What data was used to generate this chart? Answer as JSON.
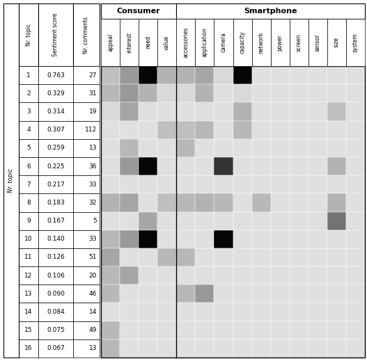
{
  "topics": [
    1,
    2,
    3,
    4,
    5,
    6,
    7,
    8,
    9,
    10,
    11,
    12,
    13,
    14,
    15,
    16
  ],
  "sentiment_scores": [
    0.763,
    0.329,
    0.314,
    0.307,
    0.259,
    0.225,
    0.217,
    0.183,
    0.167,
    0.14,
    0.126,
    0.106,
    0.09,
    0.084,
    0.075,
    0.067
  ],
  "nr_comments": [
    27,
    31,
    19,
    112,
    13,
    36,
    33,
    32,
    5,
    33,
    51,
    20,
    46,
    14,
    49,
    13
  ],
  "consumer_cols": [
    "appeal",
    "interest",
    "need",
    "value"
  ],
  "smartphone_cols": [
    "accessories",
    "application",
    "camera",
    "capacity",
    "network",
    "power",
    "screen",
    "sensor",
    "size",
    "system"
  ],
  "heatmap_data": [
    [
      0.75,
      0.6,
      0.02,
      0.7,
      0.7,
      0.65,
      0.85,
      0.02,
      0.88,
      0.88,
      0.88,
      0.88,
      0.88,
      0.88
    ],
    [
      0.72,
      0.6,
      0.7,
      0.85,
      0.85,
      0.7,
      0.88,
      0.85,
      0.88,
      0.88,
      0.88,
      0.88,
      0.88,
      0.88
    ],
    [
      0.85,
      0.65,
      0.88,
      0.88,
      0.88,
      0.88,
      0.88,
      0.7,
      0.88,
      0.88,
      0.88,
      0.88,
      0.75,
      0.88
    ],
    [
      0.88,
      0.88,
      0.88,
      0.75,
      0.75,
      0.72,
      0.88,
      0.72,
      0.88,
      0.88,
      0.88,
      0.88,
      0.88,
      0.88
    ],
    [
      0.88,
      0.72,
      0.88,
      0.88,
      0.72,
      0.88,
      0.88,
      0.88,
      0.88,
      0.88,
      0.88,
      0.88,
      0.88,
      0.88
    ],
    [
      0.88,
      0.6,
      0.02,
      0.88,
      0.88,
      0.88,
      0.2,
      0.88,
      0.88,
      0.88,
      0.88,
      0.88,
      0.7,
      0.88
    ],
    [
      0.88,
      0.88,
      0.88,
      0.88,
      0.88,
      0.88,
      0.88,
      0.88,
      0.88,
      0.88,
      0.88,
      0.88,
      0.88,
      0.88
    ],
    [
      0.7,
      0.65,
      0.88,
      0.75,
      0.72,
      0.7,
      0.72,
      0.88,
      0.72,
      0.88,
      0.88,
      0.88,
      0.7,
      0.88
    ],
    [
      0.88,
      0.88,
      0.65,
      0.88,
      0.88,
      0.88,
      0.88,
      0.88,
      0.88,
      0.88,
      0.88,
      0.88,
      0.45,
      0.88
    ],
    [
      0.72,
      0.6,
      0.02,
      0.88,
      0.88,
      0.88,
      0.02,
      0.88,
      0.88,
      0.88,
      0.88,
      0.88,
      0.88,
      0.88
    ],
    [
      0.65,
      0.88,
      0.88,
      0.72,
      0.72,
      0.88,
      0.88,
      0.88,
      0.88,
      0.88,
      0.88,
      0.88,
      0.88,
      0.88
    ],
    [
      0.72,
      0.65,
      0.88,
      0.88,
      0.88,
      0.88,
      0.88,
      0.88,
      0.88,
      0.88,
      0.88,
      0.88,
      0.88,
      0.88
    ],
    [
      0.72,
      0.88,
      0.88,
      0.88,
      0.72,
      0.6,
      0.88,
      0.88,
      0.88,
      0.88,
      0.88,
      0.88,
      0.88,
      0.88
    ],
    [
      0.88,
      0.88,
      0.88,
      0.88,
      0.88,
      0.88,
      0.88,
      0.88,
      0.88,
      0.88,
      0.88,
      0.88,
      0.88,
      0.88
    ],
    [
      0.72,
      0.88,
      0.88,
      0.88,
      0.88,
      0.88,
      0.88,
      0.88,
      0.88,
      0.88,
      0.88,
      0.88,
      0.88,
      0.88
    ],
    [
      0.72,
      0.88,
      0.88,
      0.88,
      0.88,
      0.88,
      0.88,
      0.88,
      0.88,
      0.88,
      0.88,
      0.88,
      0.88,
      0.88
    ]
  ],
  "background_color": "#ffffff"
}
